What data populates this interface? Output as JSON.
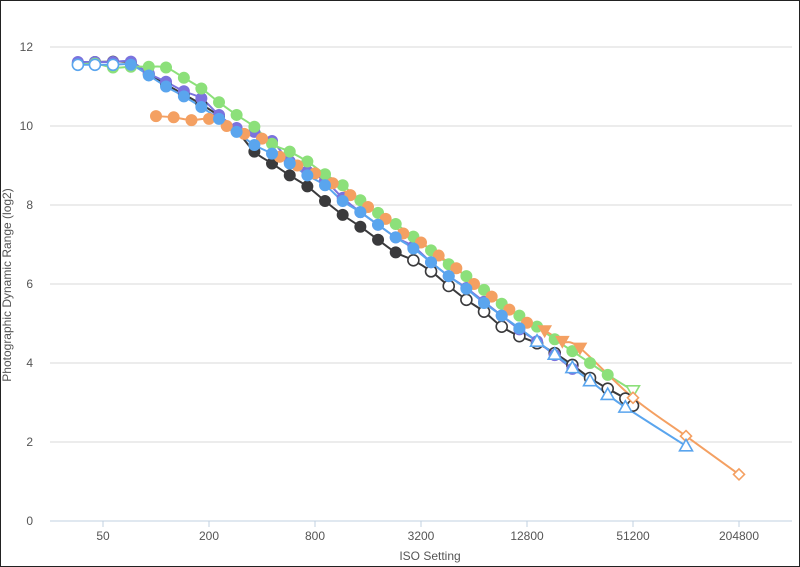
{
  "chart_data": {
    "type": "line",
    "title": "",
    "xlabel": "ISO Setting",
    "ylabel": "Photographic Dynamic Range (log2)",
    "x_scale": "log2",
    "xlim": [
      25,
      409600
    ],
    "ylim": [
      0,
      12
    ],
    "x_ticks": [
      50,
      200,
      800,
      3200,
      12800,
      51200,
      204800
    ],
    "x_tick_labels": [
      "50",
      "200",
      "800",
      "3200",
      "12800",
      "51200",
      "204800"
    ],
    "y_ticks": [
      0,
      2,
      4,
      6,
      8,
      10,
      12
    ],
    "y_tick_labels": [
      "0",
      "2",
      "4",
      "6",
      "8",
      "10",
      "12"
    ],
    "grid": "horizontal",
    "legend": "none",
    "series": [
      {
        "color": "#3a3a3c",
        "marker": "circle",
        "points": [
          [
            36,
            11.6
          ],
          [
            45,
            11.62
          ],
          [
            57,
            11.63
          ],
          [
            72,
            11.6
          ],
          [
            91,
            11.31
          ],
          [
            114,
            11.05
          ],
          [
            144,
            10.8
          ],
          [
            181,
            10.55
          ],
          [
            228,
            10.25
          ],
          [
            287,
            9.88
          ],
          [
            362,
            9.35
          ],
          [
            456,
            9.05
          ],
          [
            575,
            8.75
          ],
          [
            724,
            8.47
          ],
          [
            912,
            8.1
          ],
          [
            1149,
            7.75
          ],
          [
            1448,
            7.45
          ],
          [
            1825,
            7.12
          ],
          [
            2299,
            6.8
          ],
          [
            2896,
            6.6,
            "open"
          ],
          [
            3649,
            6.32,
            "open"
          ],
          [
            4598,
            5.95,
            "open"
          ],
          [
            5793,
            5.6,
            "open"
          ],
          [
            7298,
            5.3,
            "open"
          ],
          [
            9195,
            4.92,
            "open"
          ],
          [
            11585,
            4.68,
            "open"
          ],
          [
            14596,
            4.5,
            "open"
          ],
          [
            18390,
            4.25,
            "open"
          ],
          [
            23170,
            3.95,
            "open"
          ],
          [
            29193,
            3.62,
            "open"
          ],
          [
            36781,
            3.35,
            "open"
          ],
          [
            46341,
            3.1,
            "open"
          ],
          [
            51200,
            2.92,
            "open"
          ]
        ]
      },
      {
        "color": "#7b73de",
        "marker": "circle",
        "points": [
          [
            36,
            11.62
          ],
          [
            45,
            11.62
          ],
          [
            57,
            11.62
          ],
          [
            72,
            11.63
          ],
          [
            91,
            11.33
          ],
          [
            114,
            11.12
          ],
          [
            144,
            10.88
          ],
          [
            181,
            10.7
          ],
          [
            228,
            10.28
          ],
          [
            287,
            9.95
          ],
          [
            362,
            9.85
          ],
          [
            456,
            9.62
          ],
          [
            575,
            9.1
          ],
          [
            724,
            8.85
          ],
          [
            912,
            8.62
          ],
          [
            1149,
            8.18
          ],
          [
            1448,
            7.82
          ],
          [
            1825,
            7.5
          ],
          [
            2299,
            7.18
          ],
          [
            2896,
            6.95
          ],
          [
            3649,
            6.55
          ],
          [
            4598,
            6.2
          ],
          [
            5793,
            5.9
          ],
          [
            7298,
            5.55
          ],
          [
            9195,
            5.2
          ],
          [
            11585,
            4.85
          ],
          [
            14596,
            4.55
          ],
          [
            18390,
            4.2
          ],
          [
            23170,
            3.85
          ]
        ]
      },
      {
        "color": "#8ce07a",
        "marker": "circle",
        "points": [
          [
            36,
            11.55
          ],
          [
            45,
            11.58
          ],
          [
            57,
            11.48
          ],
          [
            72,
            11.5
          ],
          [
            91,
            11.5
          ],
          [
            114,
            11.48
          ],
          [
            144,
            11.22
          ],
          [
            181,
            10.95
          ],
          [
            228,
            10.6
          ],
          [
            287,
            10.28
          ],
          [
            362,
            9.98
          ],
          [
            456,
            9.55
          ],
          [
            575,
            9.35
          ],
          [
            724,
            9.1
          ],
          [
            912,
            8.78
          ],
          [
            1149,
            8.5
          ],
          [
            1448,
            8.12
          ],
          [
            1825,
            7.8
          ],
          [
            2299,
            7.52
          ],
          [
            2896,
            7.2
          ],
          [
            3649,
            6.85
          ],
          [
            4598,
            6.5
          ],
          [
            5793,
            6.2
          ],
          [
            7298,
            5.85
          ],
          [
            9195,
            5.5
          ],
          [
            11585,
            5.2
          ],
          [
            14596,
            4.92
          ],
          [
            18390,
            4.6
          ],
          [
            23170,
            4.3
          ],
          [
            29193,
            4.0
          ],
          [
            36781,
            3.7
          ],
          [
            51200,
            3.3,
            "open-triangle-down"
          ]
        ]
      },
      {
        "color": "#f4a062",
        "marker": "circle",
        "points": [
          [
            100,
            10.25
          ],
          [
            126,
            10.22
          ],
          [
            159,
            10.15
          ],
          [
            200,
            10.18
          ],
          [
            252,
            10.0
          ],
          [
            317,
            9.8
          ],
          [
            400,
            9.68
          ],
          [
            504,
            9.22
          ],
          [
            635,
            9.0
          ],
          [
            800,
            8.8
          ],
          [
            1008,
            8.55
          ],
          [
            1270,
            8.25
          ],
          [
            1600,
            7.95
          ],
          [
            2016,
            7.65
          ],
          [
            2540,
            7.28
          ],
          [
            3200,
            7.05
          ],
          [
            4032,
            6.72
          ],
          [
            5080,
            6.4
          ],
          [
            6400,
            6.0
          ],
          [
            8063,
            5.68
          ],
          [
            10159,
            5.35
          ],
          [
            12800,
            5.02
          ],
          [
            16127,
            4.82,
            "triangle-down"
          ],
          [
            20319,
            4.55,
            "triangle-down"
          ],
          [
            25600,
            4.38,
            "triangle-down"
          ],
          [
            51200,
            3.12,
            "open-diamond"
          ],
          [
            102400,
            2.15,
            "open-diamond"
          ],
          [
            204800,
            1.18,
            "open-diamond"
          ]
        ]
      },
      {
        "color": "#5aa5ee",
        "marker": "circle",
        "points": [
          [
            36,
            11.55,
            "open"
          ],
          [
            45,
            11.55,
            "open"
          ],
          [
            57,
            11.55,
            "open"
          ],
          [
            72,
            11.55
          ],
          [
            91,
            11.28
          ],
          [
            114,
            11.0
          ],
          [
            144,
            10.75
          ],
          [
            181,
            10.48
          ],
          [
            228,
            10.18
          ],
          [
            287,
            9.85
          ],
          [
            362,
            9.52
          ],
          [
            456,
            9.3
          ],
          [
            575,
            9.05
          ],
          [
            724,
            8.75
          ],
          [
            912,
            8.5
          ],
          [
            1149,
            8.1
          ],
          [
            1448,
            7.82
          ],
          [
            1825,
            7.5
          ],
          [
            2299,
            7.18
          ],
          [
            2896,
            6.9
          ],
          [
            3649,
            6.55
          ],
          [
            4598,
            6.2
          ],
          [
            5793,
            5.88
          ],
          [
            7298,
            5.52
          ],
          [
            9195,
            5.2
          ],
          [
            11585,
            4.88
          ],
          [
            14596,
            4.55,
            "open-triangle"
          ],
          [
            18390,
            4.22,
            "open-triangle"
          ],
          [
            23170,
            3.88,
            "open-triangle"
          ],
          [
            29193,
            3.55,
            "open-triangle"
          ],
          [
            36781,
            3.2,
            "open-triangle"
          ],
          [
            46341,
            2.88,
            "open-triangle"
          ],
          [
            102400,
            1.9,
            "open-triangle"
          ]
        ]
      }
    ]
  }
}
